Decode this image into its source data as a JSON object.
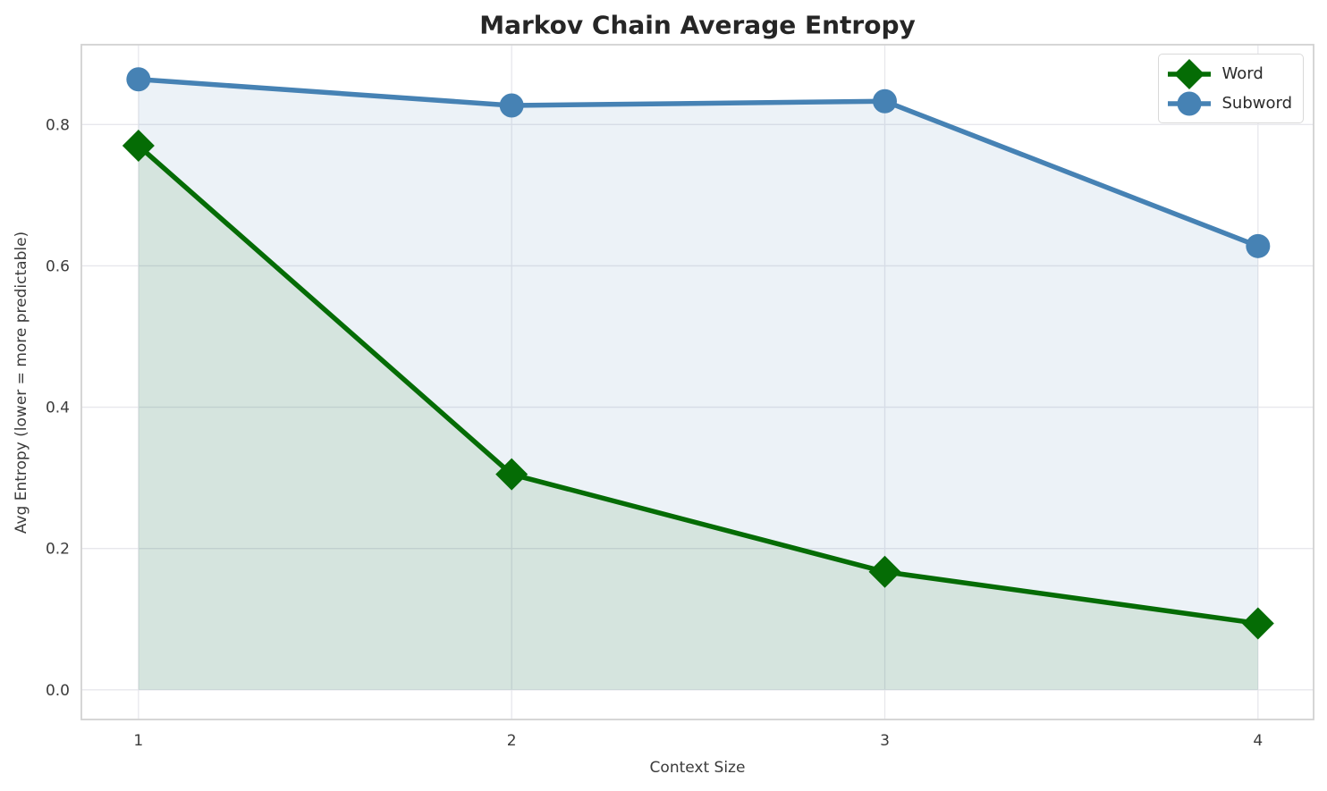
{
  "title": "Markov Chain Average Entropy",
  "axes": {
    "xlabel": "Context Size",
    "ylabel": "Avg Entropy (lower = more predictable)"
  },
  "chart_data": {
    "type": "line",
    "x": [
      1,
      2,
      3,
      4
    ],
    "series": [
      {
        "name": "Word",
        "values": [
          0.77,
          0.305,
          0.167,
          0.094
        ],
        "color": "#056c05",
        "marker": "diamond",
        "fill_to_zero": true,
        "fill_opacity": 0.1
      },
      {
        "name": "Subword",
        "values": [
          0.864,
          0.827,
          0.833,
          0.628
        ],
        "color": "#4682b4",
        "marker": "circle",
        "fill_to_zero": true,
        "fill_opacity": 0.1
      }
    ],
    "xlabel": "Context Size",
    "ylabel": "Avg Entropy (lower = more predictable)",
    "xticks": [
      1,
      2,
      3,
      4
    ],
    "xtick_labels": [
      "1",
      "2",
      "3",
      "4"
    ],
    "yticks": [
      0.0,
      0.2,
      0.4,
      0.6,
      0.8
    ],
    "ytick_labels": [
      "0.0",
      "0.2",
      "0.4",
      "0.6",
      "0.8"
    ],
    "xlim": [
      0.847,
      4.149
    ],
    "ylim": [
      -0.042,
      0.913
    ],
    "grid": true,
    "legend_position": "upper right",
    "grid_color": "#e7e7ec",
    "spine_color": "#d2d2d2",
    "tick_label_color": "#3b3b3b"
  }
}
